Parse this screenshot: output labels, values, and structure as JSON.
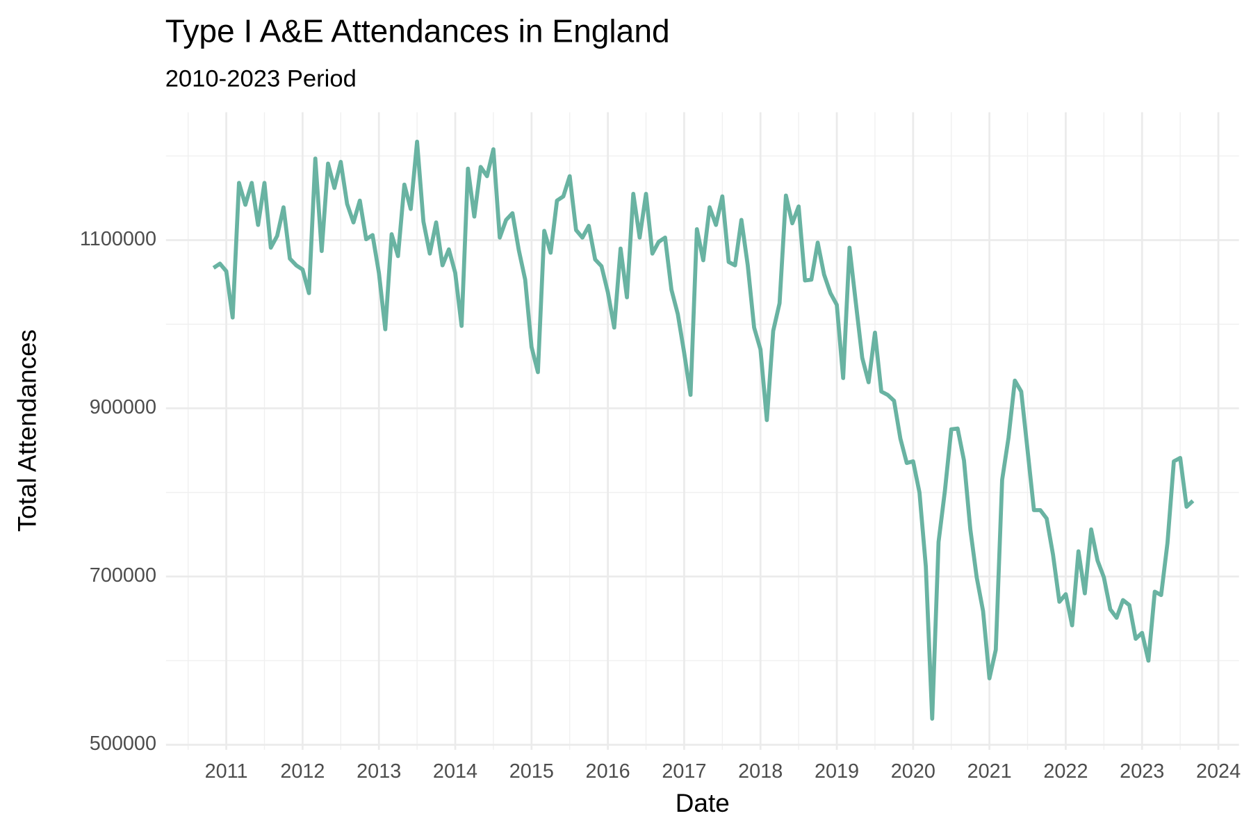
{
  "chart_data": {
    "type": "line",
    "title": "Type I A&E Attendances in England",
    "subtitle": "2010-2023 Period",
    "x_label": "Date",
    "y_label": "Total Attendances",
    "color": "#69b3a2",
    "grid": true,
    "x": [
      "2010-11",
      "2010-12",
      "2011-01",
      "2011-02",
      "2011-03",
      "2011-04",
      "2011-05",
      "2011-06",
      "2011-07",
      "2011-08",
      "2011-09",
      "2011-10",
      "2011-11",
      "2011-12",
      "2012-01",
      "2012-02",
      "2012-03",
      "2012-04",
      "2012-05",
      "2012-06",
      "2012-07",
      "2012-08",
      "2012-09",
      "2012-10",
      "2012-11",
      "2012-12",
      "2013-01",
      "2013-02",
      "2013-03",
      "2013-04",
      "2013-05",
      "2013-06",
      "2013-07",
      "2013-08",
      "2013-09",
      "2013-10",
      "2013-11",
      "2013-12",
      "2014-01",
      "2014-02",
      "2014-03",
      "2014-04",
      "2014-05",
      "2014-06",
      "2014-07",
      "2014-08",
      "2014-09",
      "2014-10",
      "2014-11",
      "2014-12",
      "2015-01",
      "2015-02",
      "2015-03",
      "2015-04",
      "2015-05",
      "2015-06",
      "2015-07",
      "2015-08",
      "2015-09",
      "2015-10",
      "2015-11",
      "2015-12",
      "2016-01",
      "2016-02",
      "2016-03",
      "2016-04",
      "2016-05",
      "2016-06",
      "2016-07",
      "2016-08",
      "2016-09",
      "2016-10",
      "2016-11",
      "2016-12",
      "2017-01",
      "2017-02",
      "2017-03",
      "2017-04",
      "2017-05",
      "2017-06",
      "2017-07",
      "2017-08",
      "2017-09",
      "2017-10",
      "2017-11",
      "2017-12",
      "2018-01",
      "2018-02",
      "2018-03",
      "2018-04",
      "2018-05",
      "2018-06",
      "2018-07",
      "2018-08",
      "2018-09",
      "2018-10",
      "2018-11",
      "2018-12",
      "2019-01",
      "2019-02",
      "2019-03",
      "2019-04",
      "2019-05",
      "2019-06",
      "2019-07",
      "2019-08",
      "2019-09",
      "2019-10",
      "2019-11",
      "2019-12",
      "2020-01",
      "2020-02",
      "2020-03",
      "2020-04",
      "2020-05",
      "2020-06",
      "2020-07",
      "2020-08",
      "2020-09",
      "2020-10",
      "2020-11",
      "2020-12",
      "2021-01",
      "2021-02",
      "2021-03",
      "2021-04",
      "2021-05",
      "2021-06",
      "2021-07",
      "2021-08",
      "2021-09",
      "2021-10",
      "2021-11",
      "2021-12",
      "2022-01",
      "2022-02",
      "2022-03",
      "2022-04",
      "2022-05",
      "2022-06",
      "2022-07",
      "2022-08",
      "2022-09",
      "2022-10",
      "2022-11",
      "2022-12",
      "2023-01",
      "2023-02",
      "2023-03",
      "2023-04",
      "2023-05",
      "2023-06",
      "2023-07",
      "2023-08",
      "2023-09"
    ],
    "values": [
      1067000,
      1072000,
      1063000,
      1008000,
      1168000,
      1142000,
      1168000,
      1118000,
      1168000,
      1091000,
      1105000,
      1139000,
      1078000,
      1070000,
      1065000,
      1037000,
      1197000,
      1087000,
      1191000,
      1162000,
      1193000,
      1143000,
      1121000,
      1147000,
      1101000,
      1106000,
      1061000,
      994000,
      1107000,
      1081000,
      1166000,
      1137000,
      1217000,
      1122000,
      1084000,
      1121000,
      1070000,
      1089000,
      1061000,
      998000,
      1185000,
      1128000,
      1187000,
      1176000,
      1208000,
      1103000,
      1124000,
      1132000,
      1088000,
      1053000,
      973000,
      943000,
      1111000,
      1085000,
      1147000,
      1152000,
      1176000,
      1112000,
      1103000,
      1117000,
      1077000,
      1069000,
      1038000,
      996000,
      1090000,
      1032000,
      1155000,
      1103000,
      1155000,
      1084000,
      1098000,
      1103000,
      1041000,
      1012000,
      966000,
      916000,
      1113000,
      1076000,
      1139000,
      1118000,
      1152000,
      1074000,
      1070000,
      1124000,
      1070000,
      996000,
      970000,
      886000,
      992000,
      1025000,
      1153000,
      1120000,
      1140000,
      1052000,
      1053000,
      1097000,
      1059000,
      1037000,
      1023000,
      936000,
      1091000,
      1025000,
      960000,
      931000,
      990000,
      920000,
      916000,
      909000,
      864000,
      835000,
      837000,
      800000,
      712000,
      531000,
      741000,
      802000,
      875000,
      876000,
      838000,
      756000,
      699000,
      659000,
      579000,
      613000,
      815000,
      865000,
      933000,
      920000,
      850000,
      779000,
      779000,
      769000,
      726000,
      670000,
      679000,
      642000,
      730000,
      680000,
      756000,
      719000,
      699000,
      661000,
      651000,
      672000,
      666000,
      626000,
      633000,
      600000,
      682000,
      678000,
      740000,
      837000,
      841000,
      783000,
      790000
    ],
    "xlim": [
      2010.21,
      2024.27
    ],
    "xticks": [
      2011,
      2012,
      2013,
      2014,
      2015,
      2016,
      2017,
      2018,
      2019,
      2020,
      2021,
      2022,
      2023,
      2024
    ],
    "ylim": [
      494000,
      1252000
    ],
    "yticks": [
      500000,
      700000,
      900000,
      1100000
    ]
  }
}
